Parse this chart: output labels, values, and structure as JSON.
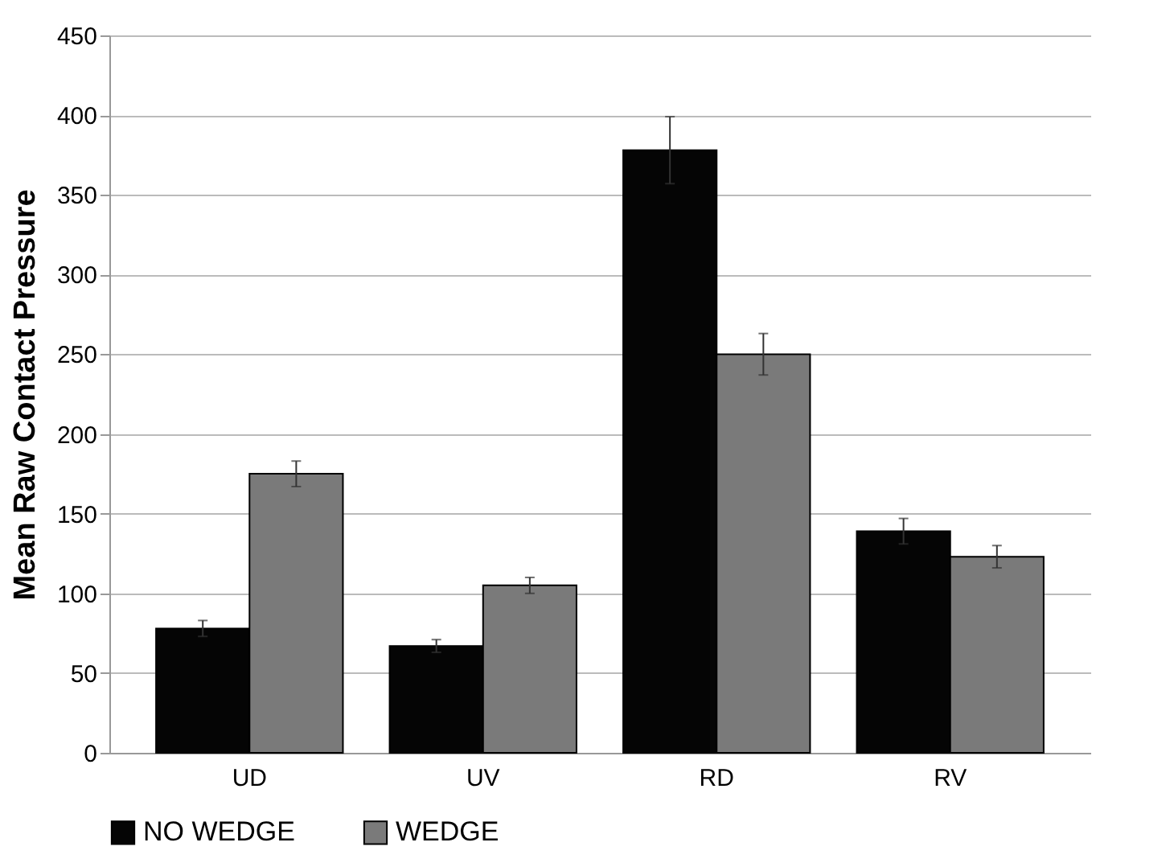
{
  "chart_data": {
    "type": "bar",
    "ylabel": "Mean Raw Contact Pressure",
    "categories": [
      "UD",
      "UV",
      "RD",
      "RV"
    ],
    "series": [
      {
        "name": "NO WEDGE",
        "color": "#050505",
        "values": [
          78,
          67,
          378,
          139
        ],
        "errors": [
          5,
          4,
          21,
          8
        ]
      },
      {
        "name": "WEDGE",
        "color": "#7a7a7a",
        "values": [
          175,
          105,
          250,
          123
        ],
        "errors": [
          8,
          5,
          13,
          7
        ]
      }
    ],
    "ylim": [
      0,
      450
    ],
    "yticks": [
      0,
      50,
      100,
      150,
      200,
      250,
      300,
      350,
      400,
      450
    ],
    "grid": "y",
    "legend": "bottom"
  }
}
